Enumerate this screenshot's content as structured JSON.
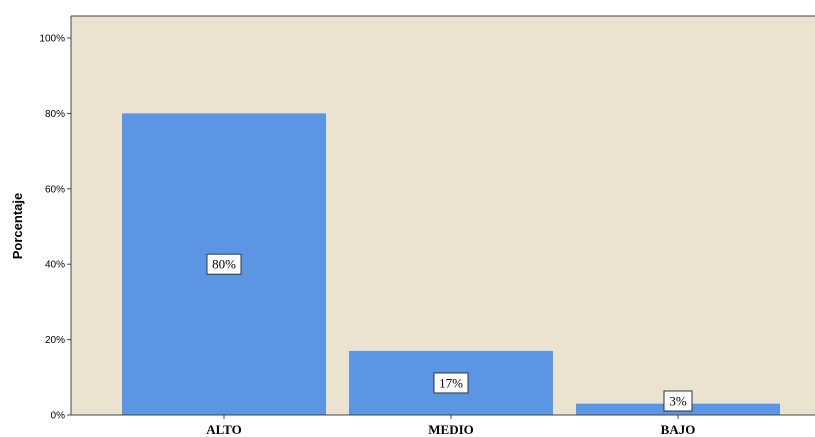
{
  "chart_data": {
    "type": "bar",
    "categories": [
      "ALTO",
      "MEDIO",
      "BAJO"
    ],
    "values": [
      80,
      17,
      3
    ],
    "data_labels": [
      "80%",
      "17%",
      "3%"
    ],
    "ylabel": "Porcentaje",
    "xlabel": "",
    "ylim": [
      0,
      100
    ],
    "yticks": [
      "0%",
      "20%",
      "40%",
      "60%",
      "80%",
      "100%"
    ],
    "grid": false,
    "colors": {
      "bar": "#5a96e3",
      "plot_background": "#ebe2cf",
      "axis": "#444444"
    }
  }
}
